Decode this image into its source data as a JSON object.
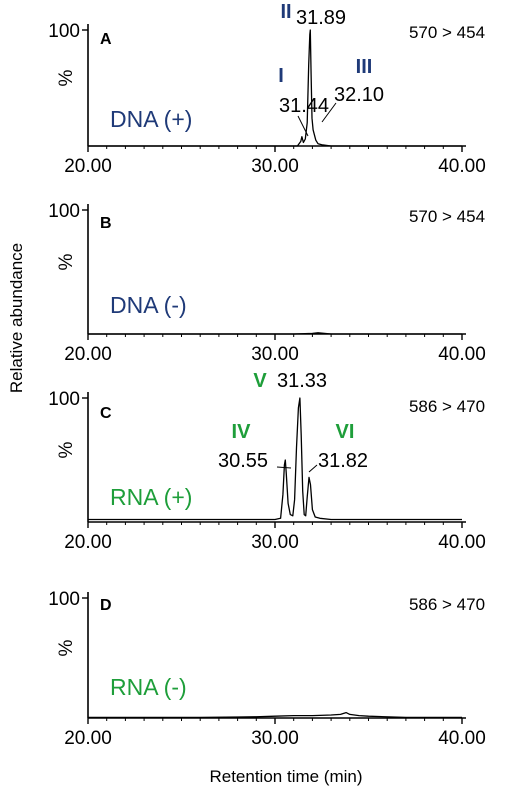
{
  "colors": {
    "dna": "#1f3a78",
    "rna": "#1e9e3a",
    "trace": "#000000"
  },
  "chart_data": {
    "type": "line",
    "ylabel": "Relative abundance",
    "xlabel": "Retention time (min)",
    "xlim": [
      20,
      40
    ],
    "ylim": [
      0,
      100
    ],
    "panels": [
      {
        "label": "A",
        "transition": "570 > 454",
        "condition": "DNA (+)",
        "color_key": "dna",
        "x_ticks": [
          "20.00",
          "30.00",
          "40.00"
        ],
        "y_tick": "100",
        "y_unit": "%",
        "series": [
          {
            "x": [
              20,
              31.2,
              31.38,
              31.44,
              31.52,
              31.62,
              31.72,
              31.8,
              31.86,
              31.89,
              31.93,
              31.98,
              32.04,
              32.1,
              32.18,
              32.3,
              32.5,
              33,
              40
            ],
            "y": [
              0,
              0,
              4,
              8,
              3,
              6,
              20,
              70,
              96,
              100,
              62,
              24,
              14,
              10,
              5,
              2,
              1,
              0,
              0
            ]
          }
        ],
        "peaks": [
          {
            "id": "I",
            "rt": "31.44"
          },
          {
            "id": "II",
            "rt": "31.89"
          },
          {
            "id": "III",
            "rt": "32.10"
          }
        ]
      },
      {
        "label": "B",
        "transition": "570 > 454",
        "condition": "DNA (-)",
        "color_key": "dna",
        "x_ticks": [
          "20.00",
          "30.00",
          "40.00"
        ],
        "y_tick": "100",
        "y_unit": "%",
        "series": [
          {
            "x": [
              20,
              31,
              32,
              32.3,
              33,
              40
            ],
            "y": [
              0,
              0,
              0.5,
              1,
              0,
              0
            ]
          }
        ],
        "peaks": []
      },
      {
        "label": "C",
        "transition": "586 > 470",
        "condition": "RNA (+)",
        "color_key": "rna",
        "x_ticks": [
          "20.00",
          "30.00",
          "40.00"
        ],
        "y_tick": "100",
        "y_unit": "%",
        "series": [
          {
            "x": [
              20,
              22,
              24,
              26,
              28,
              29,
              30,
              30.3,
              30.42,
              30.5,
              30.55,
              30.6,
              30.7,
              30.82,
              30.95,
              31.05,
              31.15,
              31.25,
              31.33,
              31.4,
              31.48,
              31.56,
              31.64,
              31.72,
              31.82,
              31.9,
              32.0,
              32.15,
              32.4,
              33,
              35,
              37,
              40
            ],
            "y": [
              2,
              2,
              2,
              2,
              2,
              2,
              2,
              3,
              22,
              46,
              50,
              40,
              15,
              6,
              5,
              18,
              60,
              92,
              100,
              70,
              25,
              6,
              5,
              20,
              36,
              30,
              10,
              4,
              3,
              2,
              2,
              2,
              2
            ]
          }
        ],
        "peaks": [
          {
            "id": "IV",
            "rt": "30.55"
          },
          {
            "id": "V",
            "rt": "31.33"
          },
          {
            "id": "VI",
            "rt": "31.82"
          }
        ]
      },
      {
        "label": "D",
        "transition": "586 > 470",
        "condition": "RNA (-)",
        "color_key": "rna",
        "x_ticks": [
          "20.00",
          "30.00",
          "40.00"
        ],
        "y_tick": "100",
        "y_unit": "%",
        "series": [
          {
            "x": [
              20,
              22,
              24,
              26,
              28,
              29,
              30,
              31,
              32,
              33,
              33.5,
              33.8,
              34,
              34.5,
              35,
              37,
              40
            ],
            "y": [
              0.5,
              0.5,
              0.5,
              0.5,
              0.8,
              1,
              1.5,
              2,
              2,
              2.5,
              3,
              4.5,
              3,
              2,
              1.5,
              0.5,
              0.5
            ]
          }
        ],
        "peaks": []
      }
    ]
  }
}
